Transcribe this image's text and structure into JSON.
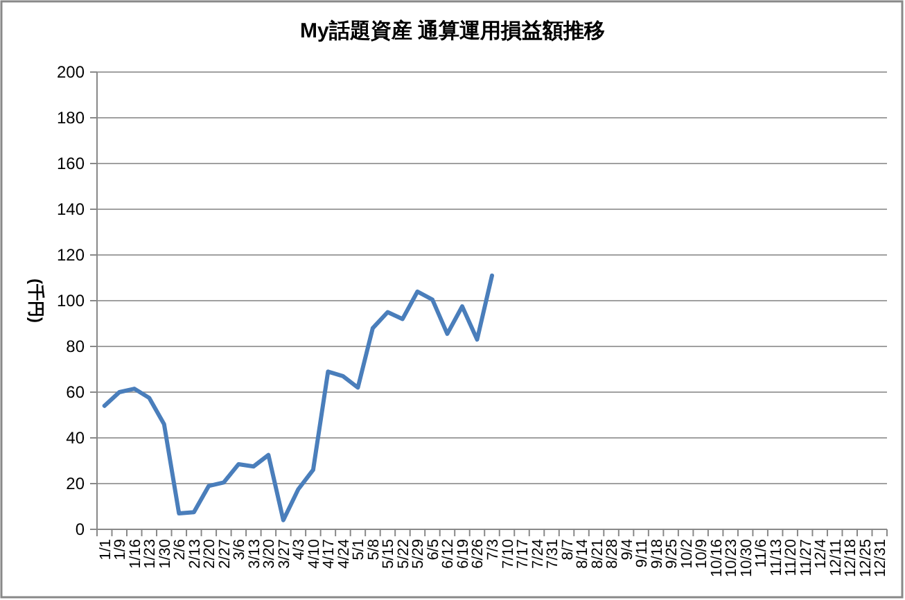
{
  "chart_data": {
    "type": "line",
    "title": "My話題資産 通算運用損益額推移",
    "ylabel": "(千円)",
    "categories": [
      "1/1",
      "1/9",
      "1/16",
      "1/23",
      "1/30",
      "2/6",
      "2/13",
      "2/20",
      "2/27",
      "3/6",
      "3/13",
      "3/20",
      "3/27",
      "4/3",
      "4/10",
      "4/17",
      "4/24",
      "5/1",
      "5/8",
      "5/15",
      "5/22",
      "5/29",
      "6/5",
      "6/12",
      "6/19",
      "6/26",
      "7/3",
      "7/10",
      "7/17",
      "7/24",
      "7/31",
      "8/7",
      "8/14",
      "8/21",
      "8/28",
      "9/4",
      "9/11",
      "9/18",
      "9/25",
      "10/2",
      "10/9",
      "10/16",
      "10/23",
      "10/30",
      "11/6",
      "11/13",
      "11/20",
      "11/27",
      "12/4",
      "12/11",
      "12/18",
      "12/25",
      "12/31"
    ],
    "series": [
      {
        "color": "#4a7ebb",
        "values": [
          54,
          60,
          61.5,
          57.5,
          46,
          7,
          7.5,
          19,
          20.5,
          28.5,
          27.5,
          32.5,
          4,
          17.5,
          26,
          69,
          67,
          62,
          88,
          95,
          92,
          104,
          100.5,
          85.5,
          97.5,
          83,
          111,
          null,
          null,
          null,
          null,
          null,
          null,
          null,
          null,
          null,
          null,
          null,
          null,
          null,
          null,
          null,
          null,
          null,
          null,
          null,
          null,
          null,
          null,
          null,
          null,
          null,
          null
        ]
      }
    ],
    "ylim": [
      0,
      200
    ],
    "yticks": [
      0,
      20,
      40,
      60,
      80,
      100,
      120,
      140,
      160,
      180,
      200
    ],
    "grid": "y",
    "marker": "none",
    "line_style": "solid"
  }
}
